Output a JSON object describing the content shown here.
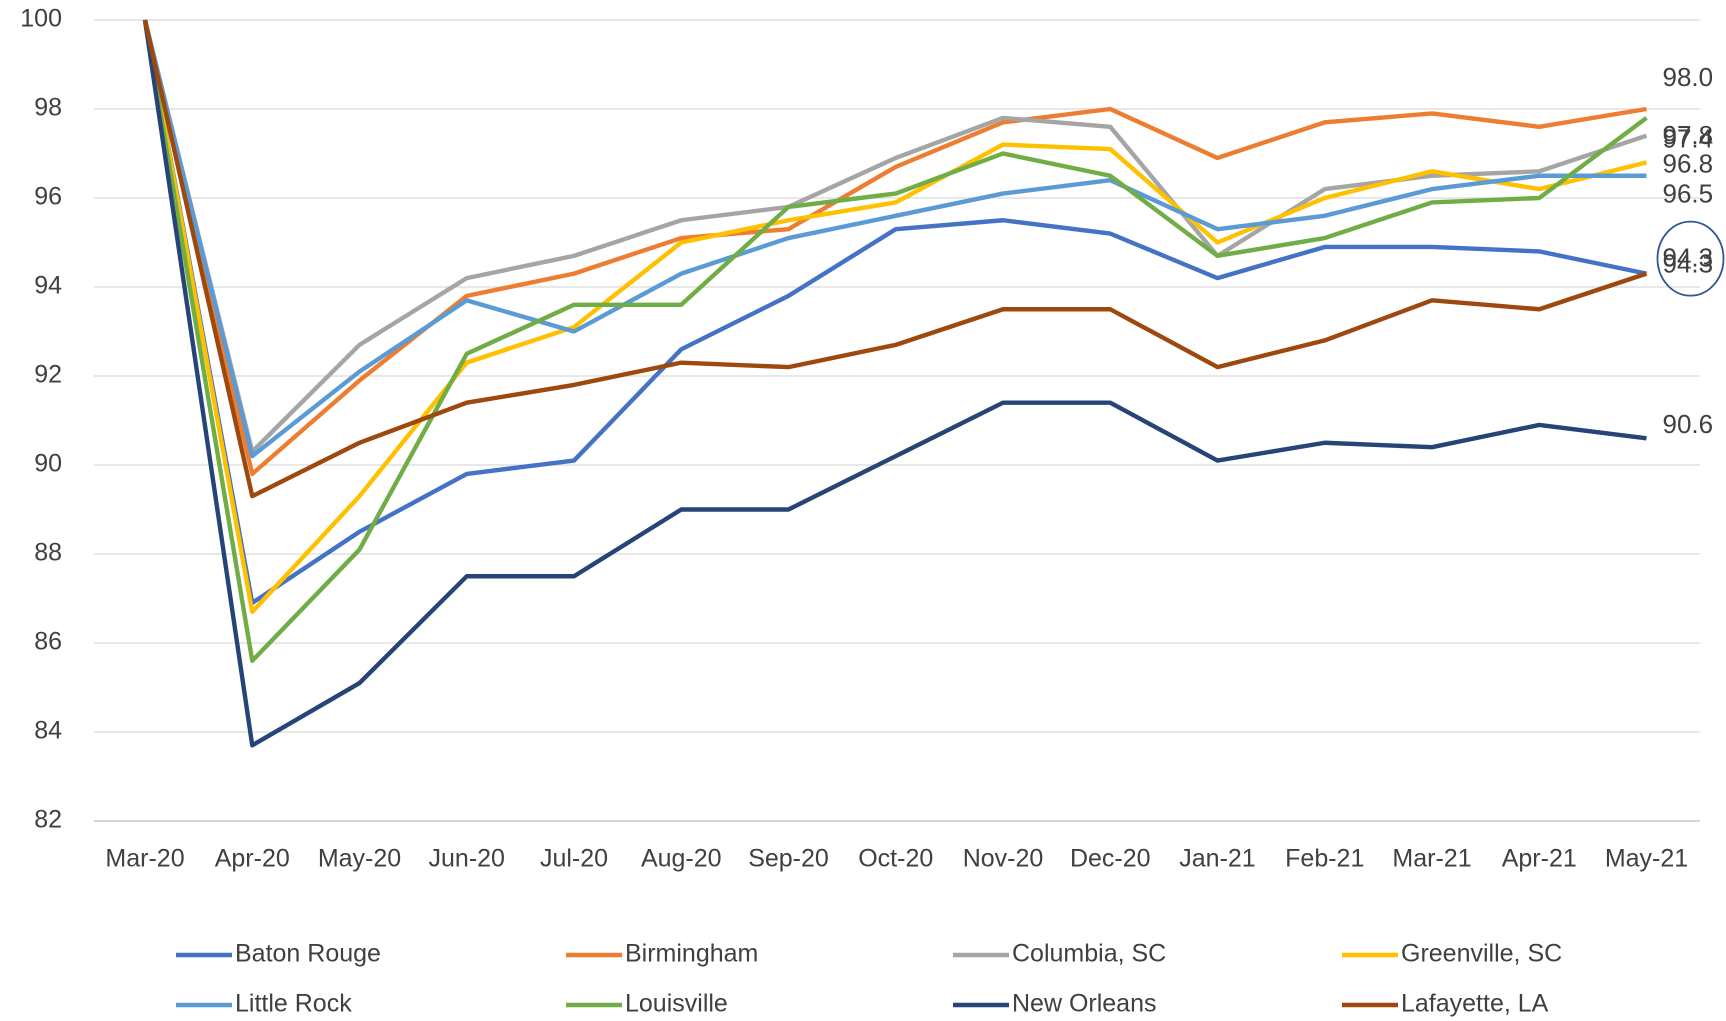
{
  "chart_data": {
    "type": "line",
    "categories": [
      "Mar-20",
      "Apr-20",
      "May-20",
      "Jun-20",
      "Jul-20",
      "Aug-20",
      "Sep-20",
      "Oct-20",
      "Nov-20",
      "Dec-20",
      "Jan-21",
      "Feb-21",
      "Mar-21",
      "Apr-21",
      "May-21"
    ],
    "ylim": [
      82,
      100
    ],
    "yticks": [
      82,
      84,
      86,
      88,
      90,
      92,
      94,
      96,
      98,
      100
    ],
    "grid": true,
    "legend": "bottom",
    "series": [
      {
        "name": "Baton Rouge",
        "color": "#4472c4",
        "values": [
          100,
          86.9,
          88.5,
          89.8,
          90.1,
          92.6,
          93.8,
          95.3,
          95.5,
          95.2,
          94.2,
          94.9,
          94.9,
          94.8,
          94.3
        ],
        "value_labels": [
          null,
          null,
          null,
          null,
          null,
          null,
          null,
          null,
          null,
          null,
          null,
          null,
          null,
          null,
          "94.3"
        ]
      },
      {
        "name": "Birmingham",
        "color": "#ed7d31",
        "values": [
          100,
          89.8,
          91.9,
          93.8,
          94.3,
          95.1,
          95.3,
          96.7,
          97.7,
          98.0,
          96.9,
          97.7,
          97.9,
          97.6,
          98.0
        ],
        "value_labels": [
          null,
          null,
          null,
          null,
          null,
          null,
          null,
          null,
          null,
          null,
          null,
          null,
          null,
          null,
          "98.0"
        ]
      },
      {
        "name": "Columbia, SC",
        "color": "#a5a5a5",
        "values": [
          100,
          90.3,
          92.7,
          94.2,
          94.7,
          95.5,
          95.8,
          96.9,
          97.8,
          97.6,
          94.7,
          96.2,
          96.5,
          96.6,
          97.4
        ],
        "value_labels": [
          null,
          null,
          null,
          null,
          null,
          null,
          null,
          null,
          null,
          null,
          null,
          null,
          null,
          null,
          "97.4"
        ]
      },
      {
        "name": "Greenville, SC",
        "color": "#ffc000",
        "values": [
          100,
          86.7,
          89.3,
          92.3,
          93.1,
          95.0,
          95.5,
          95.9,
          97.2,
          97.1,
          95.0,
          96.0,
          96.6,
          96.2,
          96.8
        ],
        "value_labels": [
          null,
          null,
          null,
          null,
          null,
          null,
          null,
          null,
          null,
          null,
          null,
          null,
          null,
          null,
          "96.8"
        ]
      },
      {
        "name": "Little Rock",
        "color": "#5b9bd5",
        "values": [
          100,
          90.2,
          92.1,
          93.7,
          93.0,
          94.3,
          95.1,
          95.6,
          96.1,
          96.4,
          95.3,
          95.6,
          96.2,
          96.5,
          96.5
        ],
        "value_labels": [
          null,
          null,
          null,
          null,
          null,
          null,
          null,
          null,
          null,
          null,
          null,
          null,
          null,
          null,
          "96.5"
        ]
      },
      {
        "name": "Louisville",
        "color": "#70ad47",
        "values": [
          100,
          85.6,
          88.1,
          92.5,
          93.6,
          93.6,
          95.8,
          96.1,
          97.0,
          96.5,
          94.7,
          95.1,
          95.9,
          96.0,
          97.8
        ],
        "value_labels": [
          null,
          null,
          null,
          null,
          null,
          null,
          null,
          null,
          null,
          null,
          null,
          null,
          null,
          null,
          "97.8"
        ]
      },
      {
        "name": "New Orleans",
        "color": "#264478",
        "values": [
          100,
          83.7,
          85.1,
          87.5,
          87.5,
          89.0,
          89.0,
          90.2,
          91.4,
          91.4,
          90.1,
          90.5,
          90.4,
          90.9,
          90.6
        ],
        "value_labels": [
          null,
          null,
          null,
          null,
          null,
          null,
          null,
          null,
          null,
          null,
          null,
          null,
          null,
          null,
          "90.6"
        ]
      },
      {
        "name": "Lafayette, LA",
        "color": "#9e480e",
        "values": [
          100,
          89.3,
          90.5,
          91.4,
          91.8,
          92.3,
          92.2,
          92.7,
          93.5,
          93.5,
          92.2,
          92.8,
          93.7,
          93.5,
          94.3
        ],
        "value_labels": [
          null,
          null,
          null,
          null,
          null,
          null,
          null,
          null,
          null,
          null,
          null,
          null,
          null,
          null,
          "94.3"
        ]
      }
    ]
  }
}
